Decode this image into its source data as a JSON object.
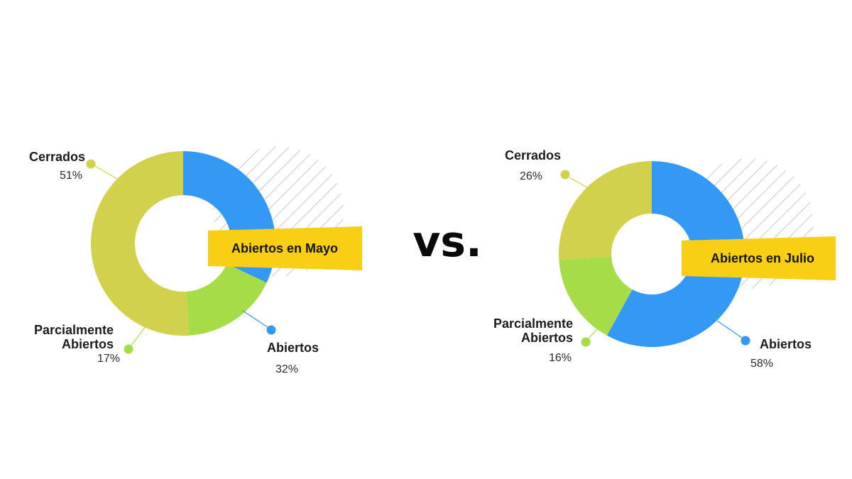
{
  "separator": "vs.",
  "colors": {
    "cerrados": "#d2d14e",
    "parcialmente": "#a6dc48",
    "abiertos": "#3399f5",
    "banner": "#f8cf12",
    "hatch": "#b8b8c0"
  },
  "chart_data": [
    {
      "type": "pie",
      "donut": true,
      "banner": "Abiertos en Mayo",
      "slices": [
        {
          "key": "abiertos",
          "label": "Abiertos",
          "value": 32,
          "pct": "32%",
          "color": "#3399f5"
        },
        {
          "key": "parcialmente",
          "label": "Parcialmente Abiertos",
          "label_lines": [
            "Parcialmente",
            "Abiertos"
          ],
          "value": 17,
          "pct": "17%",
          "color": "#a6dc48"
        },
        {
          "key": "cerrados",
          "label": "Cerrados",
          "value": 51,
          "pct": "51%",
          "color": "#d2d14e"
        }
      ]
    },
    {
      "type": "pie",
      "donut": true,
      "banner": "Abiertos en Julio",
      "slices": [
        {
          "key": "abiertos",
          "label": "Abiertos",
          "value": 58,
          "pct": "58%",
          "color": "#3399f5"
        },
        {
          "key": "parcialmente",
          "label": "Parcialmente Abiertos",
          "label_lines": [
            "Parcialmente",
            "Abiertos"
          ],
          "value": 16,
          "pct": "16%",
          "color": "#a6dc48"
        },
        {
          "key": "cerrados",
          "label": "Cerrados",
          "value": 26,
          "pct": "26%",
          "color": "#d2d14e"
        }
      ]
    }
  ]
}
